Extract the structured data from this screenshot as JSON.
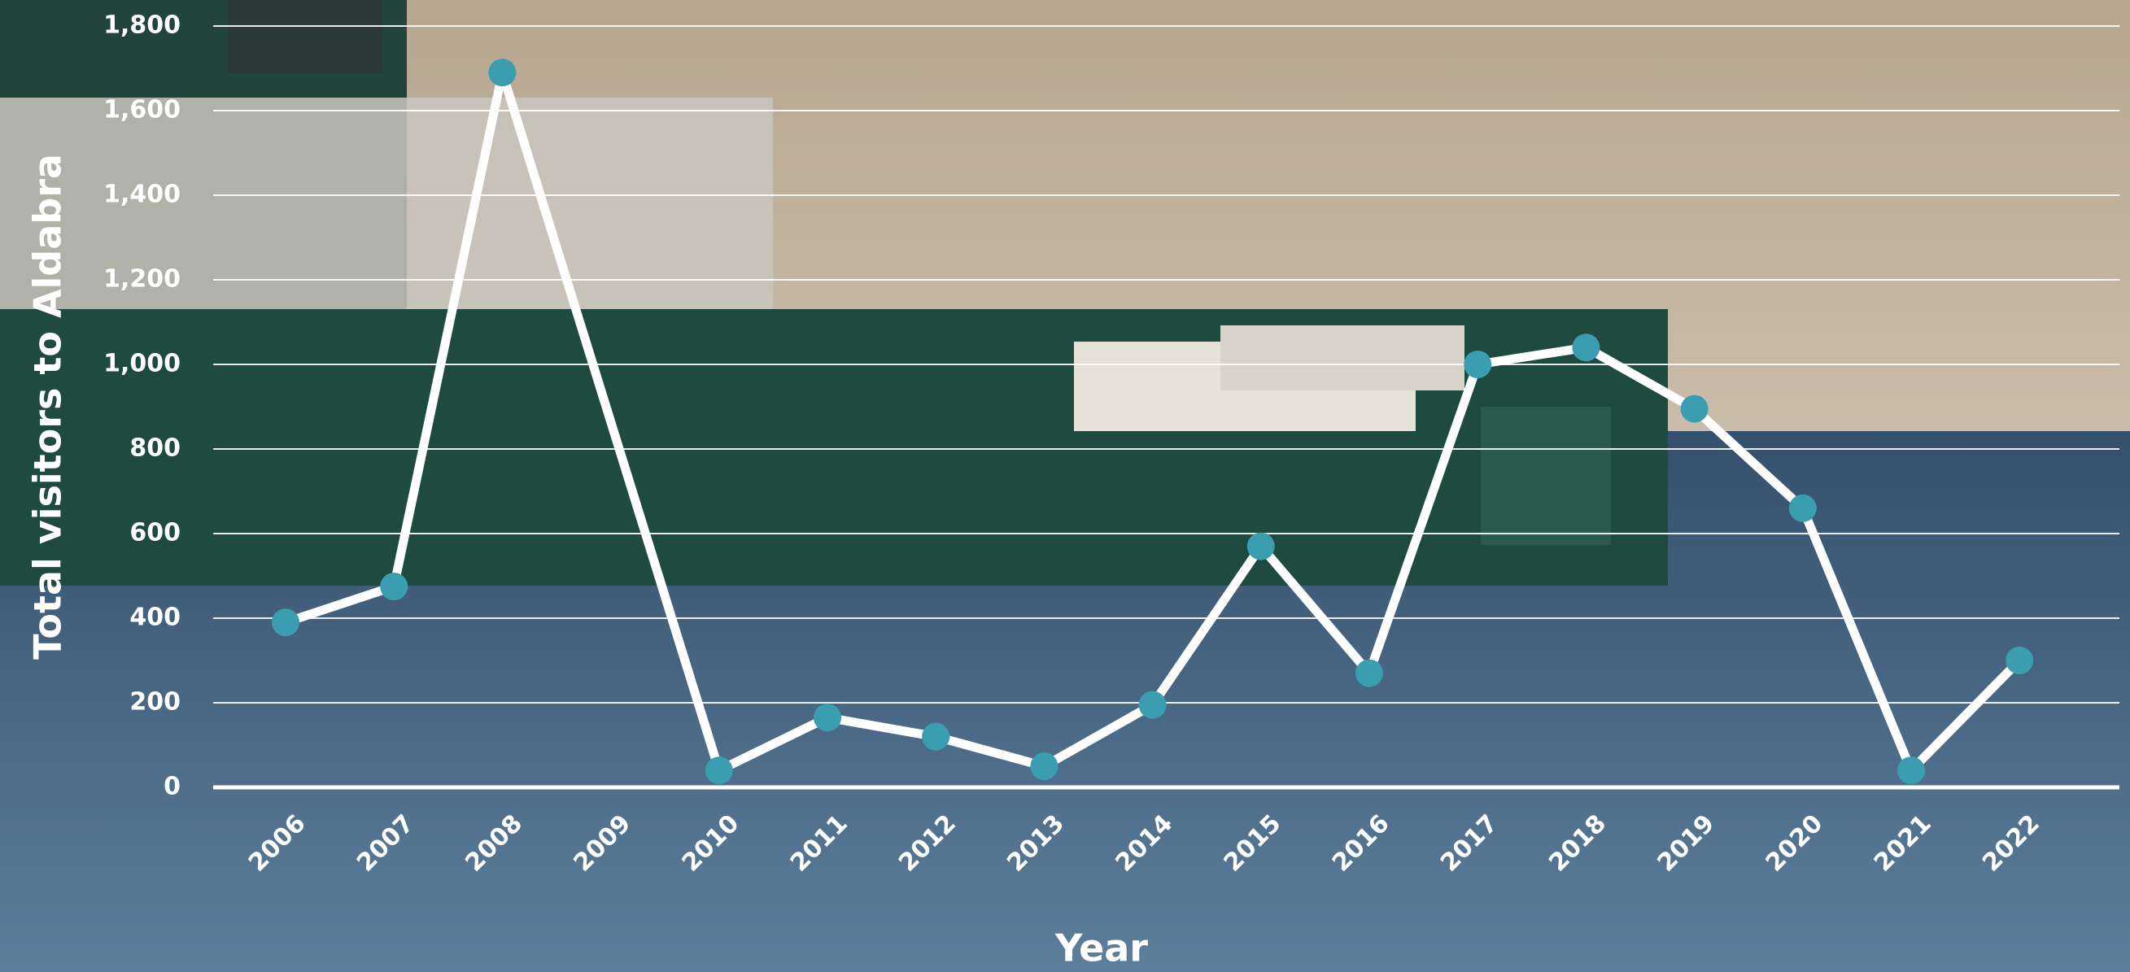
{
  "chart_data": {
    "type": "line",
    "x_label": "Year",
    "y_label": "Total visitors to Aldabra",
    "categories": [
      "2006",
      "2007",
      "2008",
      "2009",
      "2010",
      "2011",
      "2012",
      "2013",
      "2014",
      "2015",
      "2016",
      "2017",
      "2018",
      "2019",
      "2020",
      "2021",
      "2022"
    ],
    "series": [
      {
        "name": "Total visitors",
        "color": "#3a9db0",
        "line_color": "#ffffff",
        "values": [
          390,
          475,
          1690,
          null,
          40,
          165,
          120,
          50,
          195,
          570,
          270,
          1000,
          1040,
          895,
          660,
          40,
          300
        ]
      }
    ],
    "connect_gaps": true,
    "ylim": [
      0,
      1800
    ],
    "yticks": [
      0,
      200,
      400,
      600,
      800,
      {
        "value": 1000,
        "label": "1,000"
      },
      {
        "value": 1200,
        "label": "1,200"
      },
      {
        "value": 1400,
        "label": "1,400"
      },
      {
        "value": 1600,
        "label": "1,600"
      },
      {
        "value": 1800,
        "label": "1,800"
      }
    ],
    "grid": true
  }
}
